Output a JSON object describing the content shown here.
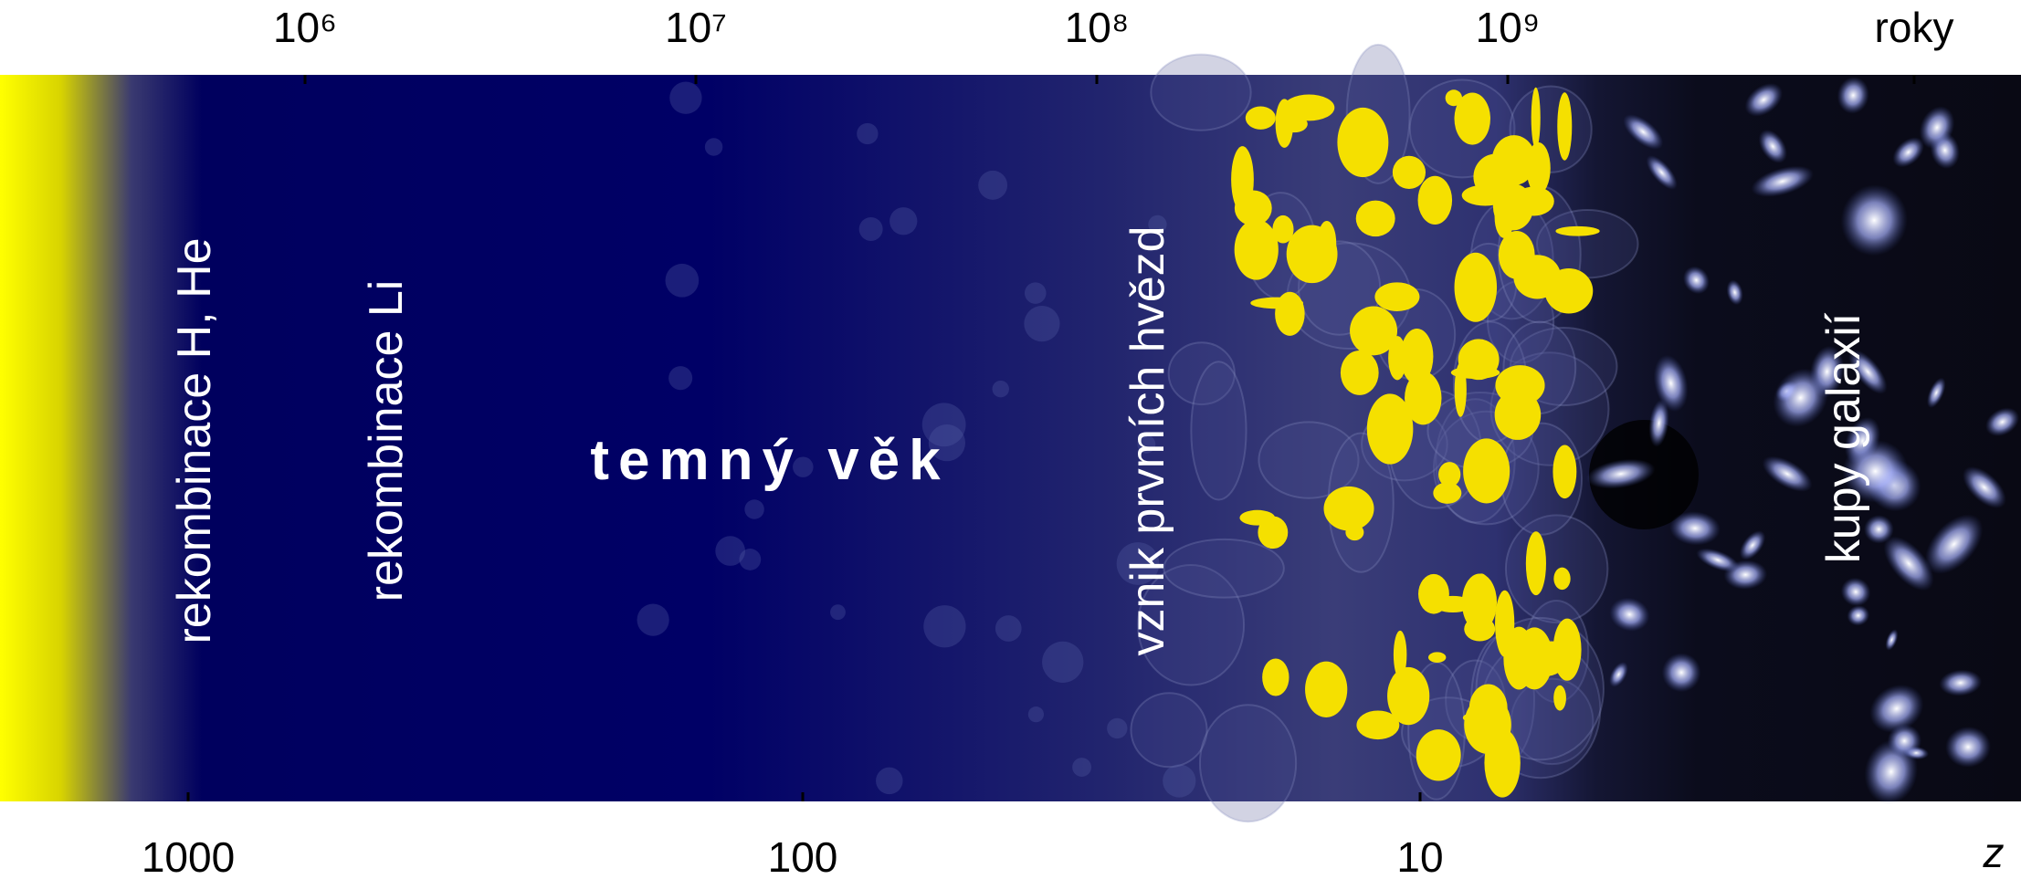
{
  "top_axis": {
    "ticks": [
      "10⁶",
      "10⁷",
      "10⁸",
      "10⁹"
    ],
    "unit": "roky"
  },
  "bottom_axis": {
    "ticks": [
      "1000",
      "100",
      "10"
    ],
    "unit": "z"
  },
  "labels": {
    "recombination_h_he": "rekombinace H, He",
    "recombination_li": "rekombinace Li",
    "dark_age": "temný věk",
    "first_stars": "vznik prvmích hvězd",
    "galaxy_clusters": "kupy galaxií"
  }
}
